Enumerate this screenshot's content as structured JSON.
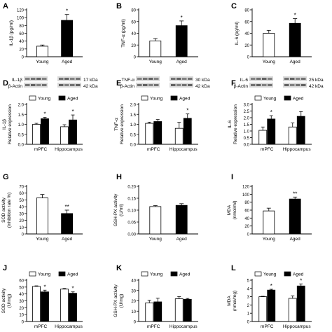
{
  "colors": {
    "young": "#ffffff",
    "aged": "#000000",
    "axis": "#000000",
    "blot_band": "#3a3a3a"
  },
  "chart_data": [
    {
      "panel": "A",
      "type": "bar",
      "categories": [
        "Young",
        "Aged"
      ],
      "values": [
        27,
        93
      ],
      "errors": [
        3,
        15
      ],
      "ylabel": "IL-1β (pg/ml)",
      "ylim": [
        0,
        120
      ],
      "yticks": [
        0,
        20,
        40,
        60,
        80,
        100,
        120
      ],
      "significance": [
        null,
        "*"
      ]
    },
    {
      "panel": "B",
      "type": "bar",
      "categories": [
        "Young",
        "Aged"
      ],
      "values": [
        27,
        53
      ],
      "errors": [
        4,
        8
      ],
      "ylabel": "TNF-α (pg/ml)",
      "ylim": [
        0,
        80
      ],
      "yticks": [
        0,
        20,
        40,
        60,
        80
      ],
      "significance": [
        null,
        "*"
      ]
    },
    {
      "panel": "C",
      "type": "bar",
      "categories": [
        "Young",
        "Aged"
      ],
      "values": [
        40,
        57
      ],
      "errors": [
        5,
        8
      ],
      "ylabel": "IL-6 (pg/ml)",
      "ylim": [
        0,
        80
      ],
      "yticks": [
        0,
        20,
        40,
        60,
        80
      ],
      "significance": [
        null,
        "*"
      ]
    },
    {
      "panel": "D",
      "type": "bar",
      "blot": {
        "labels": [
          "IL-1β",
          "β-Actin"
        ],
        "sizes": [
          "17 kDa",
          "42 kDa"
        ]
      },
      "categories": [
        "mPFC",
        "Hippocampus"
      ],
      "legend": [
        "Young",
        "Aged"
      ],
      "series": [
        {
          "name": "Young",
          "values": [
            1.0,
            0.88
          ],
          "errors": [
            0.05,
            0.1
          ]
        },
        {
          "name": "Aged",
          "values": [
            1.28,
            1.22
          ],
          "errors": [
            0.07,
            0.25
          ]
        }
      ],
      "ylabel": "Relative expression",
      "panel_label": "IL-1β",
      "ylim": [
        0,
        2.0
      ],
      "yticks": [
        0.0,
        0.5,
        1.0,
        1.5,
        2.0
      ],
      "significance": [
        "*",
        "*"
      ]
    },
    {
      "panel": "E",
      "type": "bar",
      "blot": {
        "labels": [
          "TNF-α",
          "β-Actin"
        ],
        "sizes": [
          "30 kDa",
          "42 kDa"
        ]
      },
      "categories": [
        "mPFC",
        "Hippocampus"
      ],
      "legend": [
        "Young",
        "Aged"
      ],
      "series": [
        {
          "name": "Young",
          "values": [
            1.05,
            0.8
          ],
          "errors": [
            0.06,
            0.3
          ]
        },
        {
          "name": "Aged",
          "values": [
            1.14,
            1.3
          ],
          "errors": [
            0.1,
            0.22
          ]
        }
      ],
      "ylabel": "Relative expression",
      "panel_label": "TNF-α",
      "ylim": [
        0,
        2.0
      ],
      "yticks": [
        0.0,
        0.5,
        1.0,
        1.5,
        2.0
      ],
      "significance": [
        null,
        "*"
      ]
    },
    {
      "panel": "F",
      "type": "bar",
      "blot": {
        "labels": [
          "IL-6",
          "β-Actin"
        ],
        "sizes": [
          "25 kDa",
          "42 kDa"
        ]
      },
      "categories": [
        "mPFC",
        "Hippocampus"
      ],
      "legend": [
        "Young",
        "Aged"
      ],
      "series": [
        {
          "name": "Young",
          "values": [
            1.05,
            1.3
          ],
          "errors": [
            0.25,
            0.3
          ]
        },
        {
          "name": "Aged",
          "values": [
            1.9,
            2.1
          ],
          "errors": [
            0.25,
            0.35
          ]
        }
      ],
      "ylabel": "Relative expression",
      "panel_label": "IL-6",
      "ylim": [
        0,
        3.0
      ],
      "yticks": [
        0.0,
        0.5,
        1.0,
        1.5,
        2.0,
        2.5,
        3.0
      ],
      "significance": [
        "*",
        null
      ]
    },
    {
      "panel": "G",
      "type": "bar",
      "categories": [
        "Young",
        "Aged"
      ],
      "values": [
        53,
        30
      ],
      "errors": [
        5,
        5
      ],
      "ylabel": "SOD activity",
      "ylabel2": "(inhibition rate %)",
      "ylim": [
        0,
        70
      ],
      "yticks": [
        0,
        10,
        20,
        30,
        40,
        50,
        60,
        70
      ],
      "significance": [
        null,
        "**"
      ]
    },
    {
      "panel": "H",
      "type": "bar",
      "categories": [
        "Young",
        "Aged"
      ],
      "values": [
        0.115,
        0.12
      ],
      "errors": [
        0.004,
        0.007
      ],
      "ylabel": "GSH-PX activity",
      "ylabel2": "(U/ml)",
      "ylim": [
        0,
        0.2
      ],
      "yticks": [
        0.0,
        0.05,
        0.1,
        0.15,
        0.2
      ],
      "significance": [
        null,
        null
      ]
    },
    {
      "panel": "I",
      "type": "bar",
      "categories": [
        "Young",
        "Aged"
      ],
      "values": [
        58,
        88
      ],
      "errors": [
        7,
        5
      ],
      "ylabel": "MDA",
      "ylabel2": "(nmol/ml)",
      "ylim": [
        0,
        120
      ],
      "yticks": [
        0,
        20,
        40,
        60,
        80,
        100,
        120
      ],
      "significance": [
        null,
        "**"
      ]
    },
    {
      "panel": "J",
      "type": "bar",
      "categories": [
        "mPFC",
        "Hippocampus"
      ],
      "legend": [
        "Young",
        "Aged"
      ],
      "series": [
        {
          "name": "Young",
          "values": [
            51,
            47
          ],
          "errors": [
            0.8,
            1
          ]
        },
        {
          "name": "Aged",
          "values": [
            43,
            41
          ],
          "errors": [
            2.5,
            2
          ]
        }
      ],
      "ylabel": "SOD activity",
      "ylabel2": "(U/mg)",
      "ylim": [
        0,
        60
      ],
      "yticks": [
        0,
        10,
        20,
        30,
        40,
        50,
        60
      ],
      "significance": [
        "*",
        "*"
      ]
    },
    {
      "panel": "K",
      "type": "bar",
      "categories": [
        "mPFC",
        "Hippocampus"
      ],
      "legend": [
        "Young",
        "Aged"
      ],
      "series": [
        {
          "name": "Young",
          "values": [
            18,
            22
          ],
          "errors": [
            2.5,
            2
          ]
        },
        {
          "name": "Aged",
          "values": [
            19,
            21.5
          ],
          "errors": [
            3.5,
            0.8
          ]
        }
      ],
      "ylabel": "GSH-PX activity",
      "ylabel2": "(U/mg)",
      "ylim": [
        0,
        40
      ],
      "yticks": [
        0,
        10,
        20,
        30,
        40
      ],
      "significance": [
        null,
        null
      ]
    },
    {
      "panel": "L",
      "type": "bar",
      "categories": [
        "mPFC",
        "Hippocampus"
      ],
      "legend": [
        "Young",
        "Aged"
      ],
      "series": [
        {
          "name": "Young",
          "values": [
            3.0,
            2.8
          ],
          "errors": [
            0.05,
            0.3
          ]
        },
        {
          "name": "Aged",
          "values": [
            3.8,
            4.3
          ],
          "errors": [
            0.1,
            0.25
          ]
        }
      ],
      "ylabel": "MDA",
      "ylabel2": "(nmol/mg)",
      "ylim": [
        0,
        5
      ],
      "yticks": [
        0,
        1,
        2,
        3,
        4,
        5
      ],
      "significance": [
        "*",
        "*"
      ]
    }
  ]
}
